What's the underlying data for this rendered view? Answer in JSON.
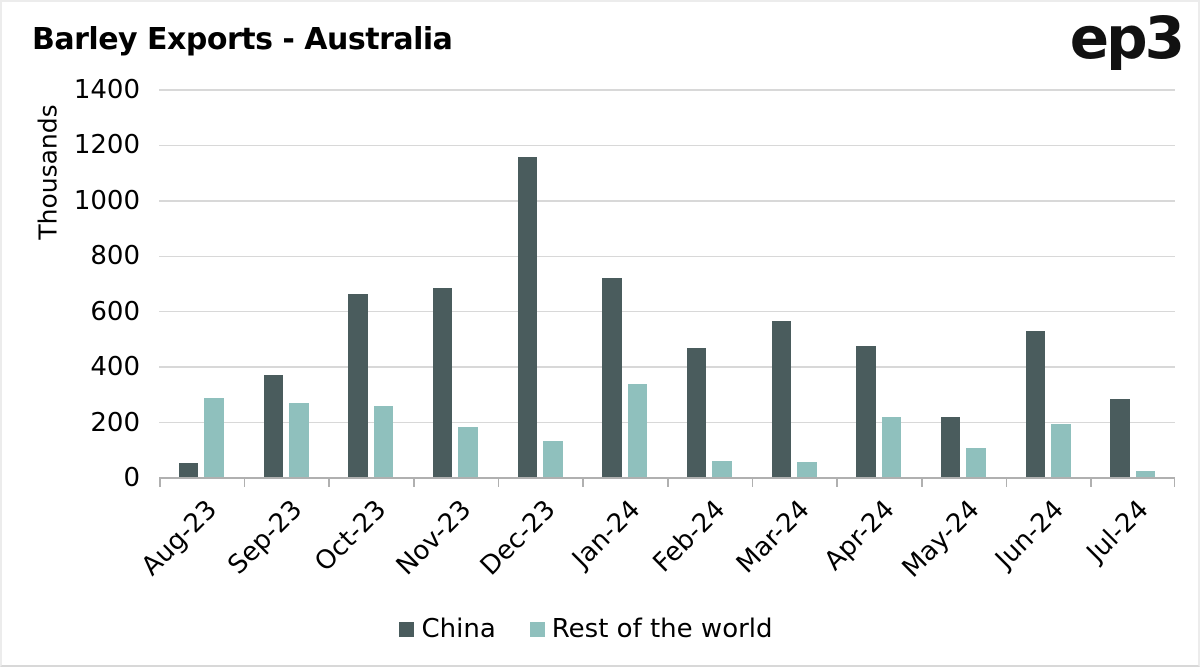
{
  "header": {
    "title": "Barley Exports - Australia",
    "logo": "ep3"
  },
  "chart_data": {
    "type": "bar",
    "title": "Barley Exports - Australia",
    "ylabel": "Thousands",
    "xlabel": "",
    "ylim": [
      0,
      1400
    ],
    "ytick_step": 200,
    "grid": true,
    "legend_position": "bottom",
    "categories": [
      "Aug-23",
      "Sep-23",
      "Oct-23",
      "Nov-23",
      "Dec-23",
      "Jan-24",
      "Feb-24",
      "Mar-24",
      "Apr-24",
      "May-24",
      "Jun-24",
      "Jul-24"
    ],
    "series": [
      {
        "name": "China",
        "color": "#4A5C5D",
        "values": [
          55,
          370,
          665,
          685,
          1160,
          720,
          470,
          565,
          475,
          220,
          530,
          285
        ]
      },
      {
        "name": "Rest of the world",
        "color": "#8FC0BD",
        "values": [
          290,
          270,
          260,
          185,
          135,
          340,
          60,
          58,
          220,
          110,
          195,
          25
        ]
      }
    ]
  },
  "colors": {
    "gridline": "#D8D8D8",
    "axis_line": "#B0B0B0",
    "text": "#000000",
    "background": "#FFFFFF"
  }
}
